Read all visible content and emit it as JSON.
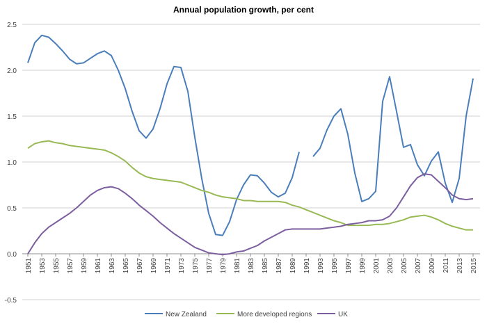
{
  "chart_data": {
    "type": "line",
    "title": "Annual population growth, per cent",
    "xlabel": "",
    "ylabel": "",
    "ylim": [
      -0.5,
      2.5
    ],
    "yticks": [
      "-0.5",
      "0.0",
      "0.5",
      "1.0",
      "1.5",
      "2.0",
      "2.5"
    ],
    "xtick_labels": [
      "1951",
      "1953",
      "1955",
      "1957",
      "1959",
      "1961",
      "1963",
      "1965",
      "1967",
      "1969",
      "1971",
      "1973",
      "1975",
      "1977",
      "1979",
      "1981",
      "1983",
      "1985",
      "1987",
      "1989",
      "1991",
      "1993",
      "1995",
      "1997",
      "1999",
      "2001",
      "2003",
      "2005",
      "2007",
      "2009",
      "2011",
      "2013",
      "2015"
    ],
    "grid": true,
    "legend": "bottom",
    "x_start": 1951,
    "x_end": 2015,
    "series": [
      {
        "name": "New Zealand",
        "color": "#4a7ebb",
        "values": [
          2.08,
          2.3,
          2.38,
          2.36,
          2.29,
          2.21,
          2.12,
          2.07,
          2.08,
          2.13,
          2.18,
          2.21,
          2.16,
          2.0,
          1.8,
          1.55,
          1.34,
          1.26,
          1.36,
          1.58,
          1.85,
          2.04,
          2.03,
          1.77,
          1.27,
          0.82,
          0.44,
          0.21,
          0.2,
          0.35,
          0.59,
          0.75,
          0.86,
          0.85,
          0.77,
          0.67,
          0.62,
          0.66,
          0.83,
          1.11,
          null,
          1.06,
          1.15,
          1.35,
          1.5,
          1.58,
          1.3,
          0.88,
          0.57,
          0.6,
          0.68,
          1.66,
          1.93,
          1.55,
          1.16,
          1.19,
          0.97,
          0.85,
          1.01,
          1.11,
          0.77,
          0.56,
          0.82,
          1.5,
          1.91
        ]
      },
      {
        "name": "More developed regions",
        "color": "#98b954",
        "values": [
          1.15,
          1.2,
          1.22,
          1.23,
          1.21,
          1.2,
          1.18,
          1.17,
          1.16,
          1.15,
          1.14,
          1.13,
          1.1,
          1.06,
          1.01,
          0.94,
          0.88,
          0.84,
          0.82,
          0.81,
          0.8,
          0.79,
          0.78,
          0.75,
          0.72,
          0.69,
          0.67,
          0.64,
          0.62,
          0.61,
          0.6,
          0.58,
          0.58,
          0.57,
          0.57,
          0.57,
          0.57,
          0.56,
          0.53,
          0.51,
          0.48,
          0.45,
          0.42,
          0.39,
          0.36,
          0.34,
          0.31,
          0.31,
          0.31,
          0.31,
          0.32,
          0.32,
          0.33,
          0.35,
          0.37,
          0.4,
          0.41,
          0.42,
          0.4,
          0.37,
          0.33,
          0.3,
          0.28,
          0.26,
          0.26
        ]
      },
      {
        "name": "UK",
        "color": "#7d5fa0",
        "values": [
          0.0,
          0.12,
          0.22,
          0.29,
          0.34,
          0.39,
          0.44,
          0.5,
          0.57,
          0.64,
          0.69,
          0.72,
          0.73,
          0.71,
          0.66,
          0.6,
          0.53,
          0.47,
          0.41,
          0.34,
          0.28,
          0.22,
          0.17,
          0.12,
          0.07,
          0.04,
          0.01,
          0.0,
          -0.01,
          0.0,
          0.02,
          0.03,
          0.06,
          0.09,
          0.14,
          0.18,
          0.22,
          0.26,
          0.27,
          0.27,
          0.27,
          0.27,
          0.27,
          0.28,
          0.29,
          0.3,
          0.32,
          0.33,
          0.34,
          0.36,
          0.36,
          0.37,
          0.41,
          0.5,
          0.62,
          0.74,
          0.83,
          0.87,
          0.86,
          0.79,
          0.72,
          0.64,
          0.6,
          0.59,
          0.6
        ]
      }
    ]
  }
}
